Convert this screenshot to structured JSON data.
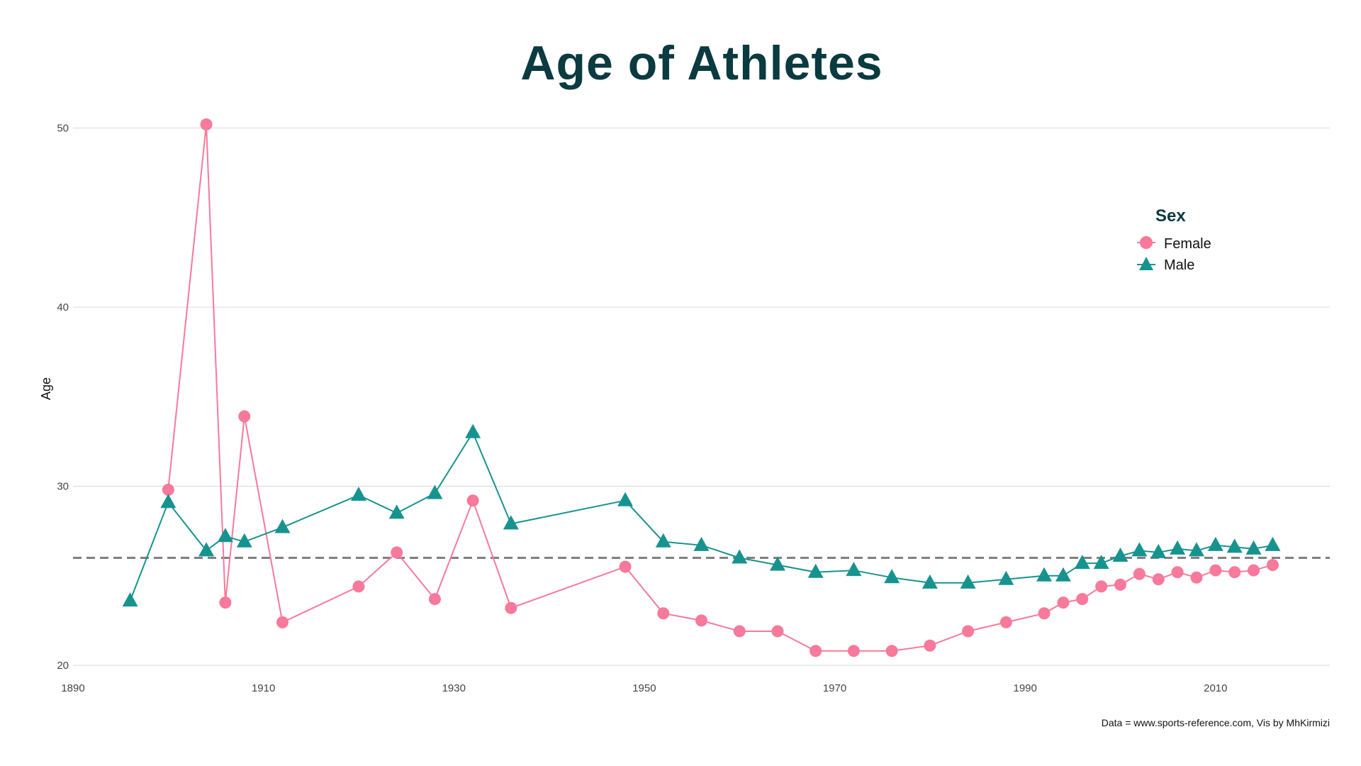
{
  "chart_data": {
    "type": "line",
    "title": "Age of Athletes",
    "ylabel": "Age",
    "xlabel": "",
    "caption": "Data = www.sports-reference.com, Vis by MhKirmizi",
    "xlim": [
      1890,
      2022
    ],
    "ylim": [
      20,
      52
    ],
    "x_ticks": [
      1890,
      1910,
      1930,
      1950,
      1970,
      1990,
      2010
    ],
    "y_ticks": [
      20,
      30,
      40,
      50
    ],
    "grid": "horizontal",
    "legend": {
      "title": "Sex",
      "position": "top-right"
    },
    "reference_line": {
      "y": 26,
      "style": "dashed",
      "color": "#808080"
    },
    "series": [
      {
        "name": "Female",
        "color": "#f7799b",
        "marker": "circle",
        "x": [
          1900,
          1904,
          1906,
          1908,
          1912,
          1920,
          1924,
          1928,
          1932,
          1936,
          1948,
          1952,
          1956,
          1960,
          1964,
          1968,
          1972,
          1976,
          1980,
          1984,
          1988,
          1992,
          1994,
          1996,
          1998,
          2000,
          2002,
          2004,
          2006,
          2008,
          2010,
          2012,
          2014,
          2016
        ],
        "y": [
          29.8,
          50.2,
          23.5,
          33.9,
          22.4,
          24.4,
          26.3,
          23.7,
          29.2,
          23.2,
          25.5,
          22.9,
          22.5,
          21.9,
          21.9,
          20.8,
          20.8,
          20.8,
          21.1,
          21.9,
          22.4,
          22.9,
          23.5,
          23.7,
          24.4,
          24.5,
          25.1,
          24.8,
          25.2,
          24.9,
          25.3,
          25.2,
          25.3,
          25.6
        ]
      },
      {
        "name": "Male",
        "color": "#17938f",
        "marker": "triangle",
        "x": [
          1896,
          1900,
          1904,
          1906,
          1908,
          1912,
          1920,
          1924,
          1928,
          1932,
          1936,
          1948,
          1952,
          1956,
          1960,
          1964,
          1968,
          1972,
          1976,
          1980,
          1984,
          1988,
          1992,
          1994,
          1996,
          1998,
          2000,
          2002,
          2004,
          2006,
          2008,
          2010,
          2012,
          2014,
          2016
        ],
        "y": [
          23.6,
          29.1,
          26.4,
          27.2,
          26.9,
          27.7,
          29.5,
          28.5,
          29.6,
          33.0,
          27.9,
          29.2,
          26.9,
          26.7,
          26.0,
          25.6,
          25.2,
          25.3,
          24.9,
          24.6,
          24.6,
          24.8,
          25.0,
          25.0,
          25.7,
          25.7,
          26.1,
          26.4,
          26.3,
          26.5,
          26.4,
          26.7,
          26.6,
          26.5,
          26.7
        ]
      }
    ]
  }
}
